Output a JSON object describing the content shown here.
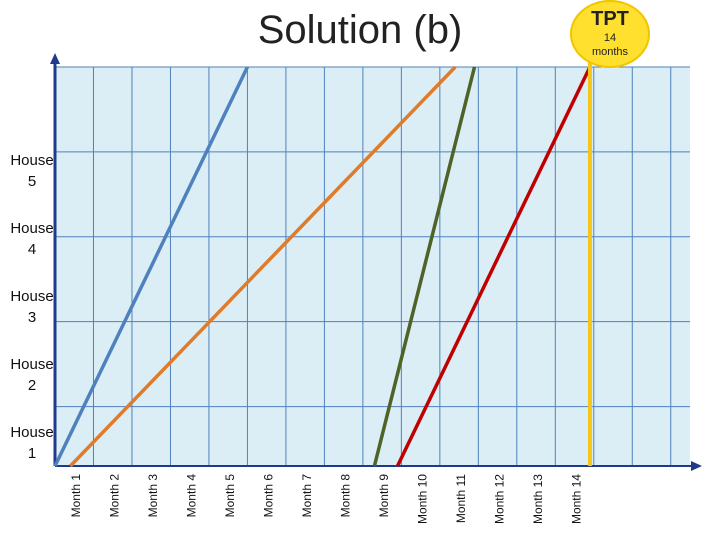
{
  "title": "Solution (b)",
  "tpt_badge": {
    "label": "TPT",
    "value": "14",
    "unit": "months"
  },
  "colors": {
    "plot_bg": "#dbeef6",
    "grid": "#4f81bd",
    "axis": "#1f3a8a",
    "tpt_line": "#f5c518"
  },
  "chart_data": {
    "type": "line",
    "title": "Solution (b)",
    "x_tick_labels": [
      "Month 1",
      "Month 2",
      "Month 3",
      "Month 4",
      "Month 5",
      "Month 6",
      "Month 7",
      "Month 8",
      "Month 9",
      "Month 10",
      "Month 11",
      "Month 12",
      "Month 13",
      "Month 14"
    ],
    "y_tick_labels": [
      {
        "lines": [
          "House",
          "1"
        ],
        "y": 1
      },
      {
        "lines": [
          "House",
          "2"
        ],
        "y": 2
      },
      {
        "lines": [
          "House",
          "3"
        ],
        "y": 3
      },
      {
        "lines": [
          "House",
          "4"
        ],
        "y": 4
      },
      {
        "lines": [
          "House",
          "5"
        ],
        "y": 5
      }
    ],
    "xlim": [
      0,
      16.5
    ],
    "ylim": [
      0.3,
      5
    ],
    "grid": true,
    "series": [
      {
        "color": "#4f81bd",
        "points": [
          [
            0,
            0.3
          ],
          [
            5,
            5
          ]
        ]
      },
      {
        "color": "#e07b2a",
        "points": [
          [
            0.4,
            0.3
          ],
          [
            10.4,
            5
          ]
        ]
      },
      {
        "color": "#4f6228",
        "points": [
          [
            8.3,
            0.3
          ],
          [
            10.9,
            5
          ]
        ]
      },
      {
        "color": "#c00000",
        "points": [
          [
            8.9,
            0.3
          ],
          [
            13.9,
            5
          ]
        ]
      }
    ],
    "marker_line": {
      "x": 13.9,
      "label": "TPT"
    }
  }
}
